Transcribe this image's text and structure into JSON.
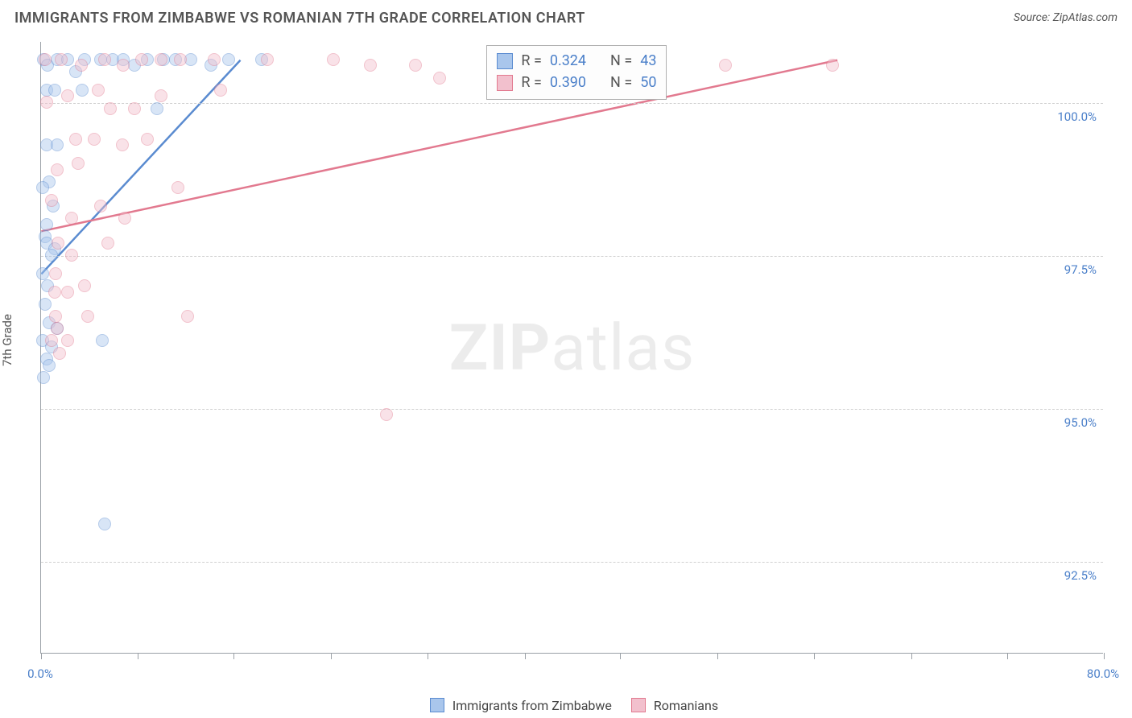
{
  "chart": {
    "type": "scatter",
    "title": "IMMIGRANTS FROM ZIMBABWE VS ROMANIAN 7TH GRADE CORRELATION CHART",
    "source_label": "Source: ZipAtlas.com",
    "ylabel": "7th Grade",
    "xlim": [
      0,
      80
    ],
    "ylim": [
      91,
      101
    ],
    "x_ticks": [
      0,
      7.3,
      14.5,
      21.8,
      29.1,
      36.4,
      43.6,
      50.9,
      58.2,
      65.5,
      72.7,
      80
    ],
    "x_tick_labels": {
      "0": "0.0%",
      "80": "80.0%"
    },
    "y_gridlines": [
      92.5,
      95.0,
      97.5,
      100.0
    ],
    "y_tick_labels": {
      "92.5": "92.5%",
      "95.0": "95.0%",
      "97.5": "97.5%",
      "100.0": "100.0%"
    },
    "background_color": "#ffffff",
    "grid_color": "#d0d0d0",
    "axis_color": "#9aa0a6",
    "title_fontsize": 18,
    "label_fontsize": 15,
    "tick_color": "#4a7fc9",
    "marker_radius": 8,
    "marker_opacity": 0.45,
    "watermark": {
      "text1": "ZIP",
      "text2": "atlas"
    },
    "series": [
      {
        "name": "Immigrants from Zimbabwe",
        "color_fill": "#a9c6ec",
        "color_stroke": "#5a8bd0",
        "R": "0.324",
        "N": "43",
        "regression": {
          "x1": 0,
          "y1": 97.2,
          "x2": 15,
          "y2": 100.7
        },
        "points": [
          [
            0.2,
            100.7
          ],
          [
            0.5,
            100.6
          ],
          [
            1.2,
            100.7
          ],
          [
            2.0,
            100.7
          ],
          [
            2.6,
            100.5
          ],
          [
            3.3,
            100.7
          ],
          [
            4.5,
            100.7
          ],
          [
            5.4,
            100.7
          ],
          [
            6.2,
            100.7
          ],
          [
            7.0,
            100.6
          ],
          [
            8.0,
            100.7
          ],
          [
            9.2,
            100.7
          ],
          [
            10.1,
            100.7
          ],
          [
            11.3,
            100.7
          ],
          [
            12.8,
            100.6
          ],
          [
            14.1,
            100.7
          ],
          [
            16.6,
            100.7
          ],
          [
            0.4,
            100.2
          ],
          [
            1.0,
            100.2
          ],
          [
            3.1,
            100.2
          ],
          [
            8.7,
            99.9
          ],
          [
            0.4,
            99.3
          ],
          [
            1.2,
            99.3
          ],
          [
            0.6,
            98.7
          ],
          [
            0.1,
            98.6
          ],
          [
            0.4,
            98.0
          ],
          [
            0.9,
            98.3
          ],
          [
            0.3,
            97.8
          ],
          [
            0.4,
            97.7
          ],
          [
            1.0,
            97.6
          ],
          [
            0.8,
            97.5
          ],
          [
            0.1,
            97.2
          ],
          [
            0.5,
            97.0
          ],
          [
            0.3,
            96.7
          ],
          [
            0.6,
            96.4
          ],
          [
            1.2,
            96.3
          ],
          [
            0.1,
            96.1
          ],
          [
            0.4,
            95.8
          ],
          [
            0.8,
            96.0
          ],
          [
            4.6,
            96.1
          ],
          [
            0.6,
            95.7
          ],
          [
            0.2,
            95.5
          ],
          [
            4.8,
            93.1
          ]
        ]
      },
      {
        "name": "Romanians",
        "color_fill": "#f2c0cd",
        "color_stroke": "#e2798f",
        "R": "0.390",
        "N": "50",
        "regression": {
          "x1": 0,
          "y1": 97.9,
          "x2": 60,
          "y2": 100.7
        },
        "points": [
          [
            0.3,
            100.7
          ],
          [
            1.5,
            100.7
          ],
          [
            3.0,
            100.6
          ],
          [
            4.8,
            100.7
          ],
          [
            6.2,
            100.6
          ],
          [
            7.6,
            100.7
          ],
          [
            9.0,
            100.7
          ],
          [
            10.5,
            100.7
          ],
          [
            13.0,
            100.7
          ],
          [
            17.0,
            100.7
          ],
          [
            22.0,
            100.7
          ],
          [
            24.8,
            100.6
          ],
          [
            28.2,
            100.6
          ],
          [
            30.0,
            100.4
          ],
          [
            40.0,
            100.7
          ],
          [
            51.5,
            100.6
          ],
          [
            59.6,
            100.6
          ],
          [
            0.4,
            100.0
          ],
          [
            2.0,
            100.1
          ],
          [
            4.3,
            100.2
          ],
          [
            5.2,
            99.9
          ],
          [
            7.0,
            99.9
          ],
          [
            9.0,
            100.1
          ],
          [
            13.5,
            100.2
          ],
          [
            2.6,
            99.4
          ],
          [
            4.0,
            99.4
          ],
          [
            6.1,
            99.3
          ],
          [
            8.0,
            99.4
          ],
          [
            1.2,
            98.9
          ],
          [
            2.8,
            99.0
          ],
          [
            10.3,
            98.6
          ],
          [
            0.8,
            98.4
          ],
          [
            2.3,
            98.1
          ],
          [
            4.5,
            98.3
          ],
          [
            6.3,
            98.1
          ],
          [
            1.3,
            97.7
          ],
          [
            1.1,
            97.2
          ],
          [
            2.3,
            97.5
          ],
          [
            5.0,
            97.7
          ],
          [
            1.0,
            96.9
          ],
          [
            2.0,
            96.9
          ],
          [
            3.3,
            97.0
          ],
          [
            1.1,
            96.5
          ],
          [
            1.2,
            96.3
          ],
          [
            3.5,
            96.5
          ],
          [
            2.0,
            96.1
          ],
          [
            11.0,
            96.5
          ],
          [
            0.8,
            96.1
          ],
          [
            1.4,
            95.9
          ],
          [
            26.0,
            94.9
          ]
        ]
      }
    ],
    "inner_legend": {
      "left_pct": 42.0,
      "R_label": "R =",
      "N_label": "N ="
    },
    "bottom_legend": {
      "items": [
        "Immigrants from Zimbabwe",
        "Romanians"
      ]
    }
  }
}
